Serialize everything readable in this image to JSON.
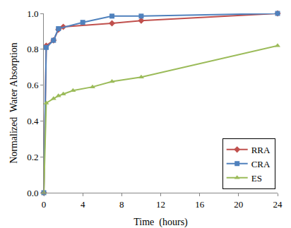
{
  "chart_data": {
    "type": "line",
    "x_label": "Time  (hours)",
    "y_label": "Normalized  Water Absorption",
    "xlim": [
      0,
      24
    ],
    "xticks": [
      0,
      4,
      8,
      12,
      16,
      20,
      24
    ],
    "ylim": [
      0,
      1
    ],
    "yticks": [
      {
        "value": 0,
        "label": "0.0"
      },
      {
        "value": 0.2,
        "label": "0.2"
      },
      {
        "value": 0.4,
        "label": "0.4"
      },
      {
        "value": 0.6,
        "label": "0.6"
      },
      {
        "value": 0.8,
        "label": "0.8"
      },
      {
        "value": 1,
        "label": "1.0"
      }
    ],
    "grid": false,
    "legend": "lower right",
    "series": [
      {
        "name": "RRA",
        "color": "#c0504d",
        "marker": "diamond",
        "line_style": "solid",
        "x": [
          0,
          0.25,
          1,
          1.5,
          2,
          7,
          10,
          24
        ],
        "values": [
          0,
          0.82,
          0.85,
          0.91,
          0.925,
          0.945,
          0.96,
          1.0
        ]
      },
      {
        "name": "CRA",
        "color": "#4f81bd",
        "marker": "square",
        "line_style": "solid",
        "x": [
          0,
          0.25,
          1,
          1.5,
          4,
          7,
          10,
          24
        ],
        "values": [
          0,
          0.81,
          0.85,
          0.915,
          0.95,
          0.985,
          0.985,
          1.0
        ]
      },
      {
        "name": "ES",
        "color": "#9bbb59",
        "marker": "triangle",
        "line_style": "solid",
        "x": [
          0,
          0.25,
          1,
          1.5,
          2,
          3,
          5,
          7,
          10,
          24
        ],
        "values": [
          0,
          0.5,
          0.525,
          0.54,
          0.55,
          0.57,
          0.59,
          0.62,
          0.645,
          0.82
        ]
      }
    ]
  }
}
